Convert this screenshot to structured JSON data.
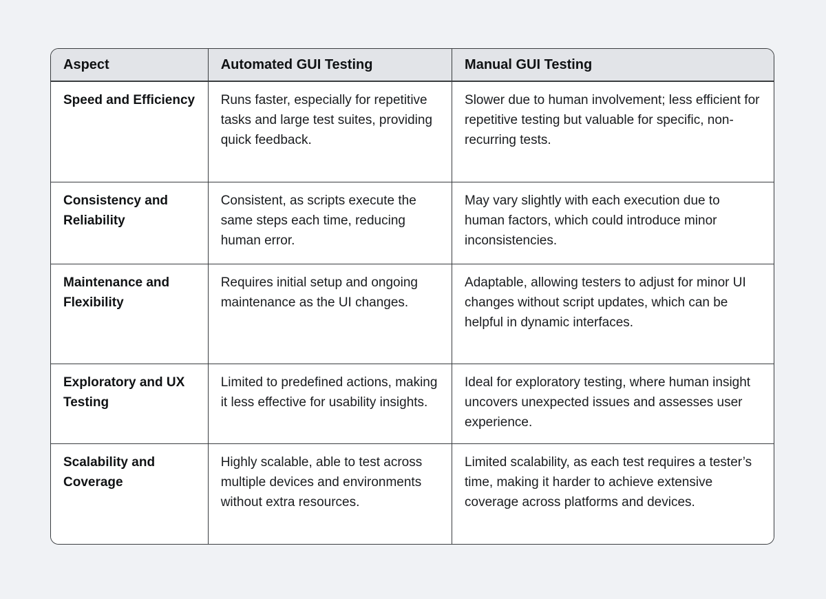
{
  "table": {
    "columns": [
      "Aspect",
      "Automated GUI Testing",
      "Manual GUI Testing"
    ],
    "rows": [
      {
        "aspect": "Speed and Efficiency",
        "automated": "Runs faster, especially for repetitive tasks and large test suites, providing quick feedback.",
        "manual": "Slower due to human involvement; less efficient for repetitive testing but valuable for specific, non-recurring tests."
      },
      {
        "aspect": "Consistency and Reliability",
        "automated": "Consistent, as scripts execute the same steps each time, reducing human error.",
        "manual": "May vary slightly with each execution due to human factors, which could introduce minor inconsistencies."
      },
      {
        "aspect": "Maintenance and Flexibility",
        "automated": "Requires initial setup and ongoing maintenance as the UI changes.",
        "manual": "Adaptable, allowing testers to adjust for minor UI changes without script updates, which can be helpful in dynamic interfaces."
      },
      {
        "aspect": "Exploratory and UX Testing",
        "automated": "Limited to predefined actions, making it less effective for usability insights.",
        "manual": "Ideal for exploratory testing, where human insight uncovers unexpected issues and assesses user experience."
      },
      {
        "aspect": "Scalability and Coverage",
        "automated": "Highly scalable, able to test across multiple devices and environments without extra resources.",
        "manual": "Limited scalability, as each test requires a tester’s time, making it harder to achieve extensive coverage across platforms and devices."
      }
    ]
  }
}
